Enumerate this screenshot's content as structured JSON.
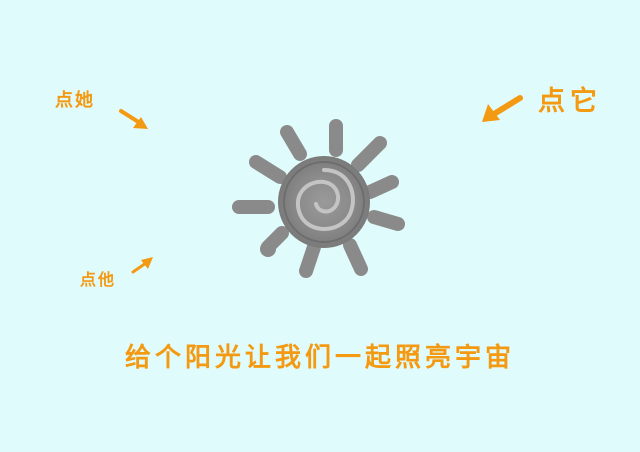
{
  "hints": {
    "her": "点她",
    "it": "点它",
    "him": "点他"
  },
  "caption": "给个阳光让我们一起照亮宇宙",
  "icons": {
    "sun": "sun-icon",
    "arrow": "arrow-icon"
  },
  "colors": {
    "background": "#e0fbfb",
    "accent": "#f39a12",
    "sun": "#8a8a8a"
  }
}
